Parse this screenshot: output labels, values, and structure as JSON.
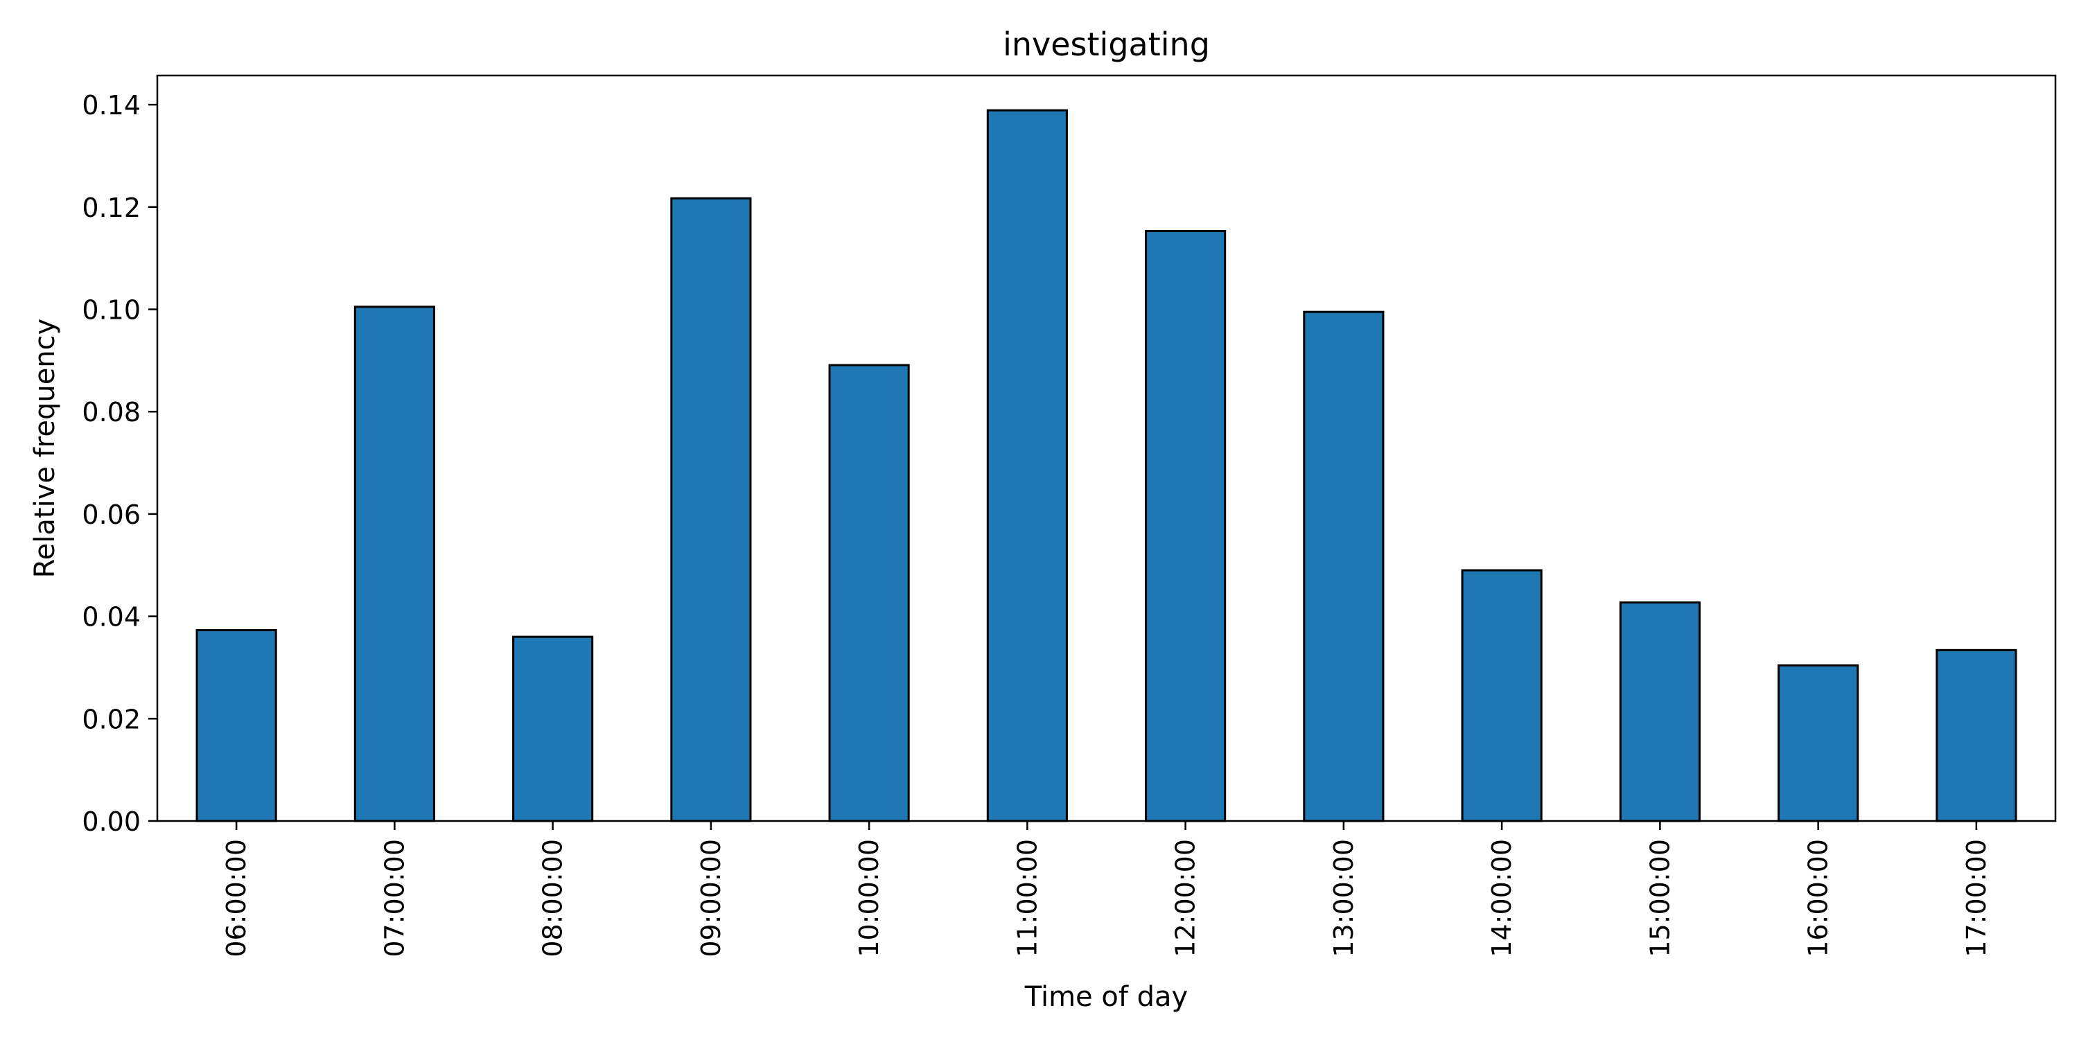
{
  "chart_data": {
    "type": "bar",
    "title": "investigating",
    "xlabel": "Time of day",
    "ylabel": "Relative frequency",
    "categories": [
      "06:00:00",
      "07:00:00",
      "08:00:00",
      "09:00:00",
      "10:00:00",
      "11:00:00",
      "12:00:00",
      "13:00:00",
      "14:00:00",
      "15:00:00",
      "16:00:00",
      "17:00:00"
    ],
    "values": [
      0.0373,
      0.1005,
      0.036,
      0.1217,
      0.0891,
      0.1389,
      0.1153,
      0.0995,
      0.049,
      0.0427,
      0.0304,
      0.0334
    ],
    "ylim": [
      0,
      0.1457
    ],
    "yticks": [
      0.0,
      0.02,
      0.04,
      0.06,
      0.08,
      0.1,
      0.12,
      0.14
    ],
    "ytick_labels": [
      "0.00",
      "0.02",
      "0.04",
      "0.06",
      "0.08",
      "0.10",
      "0.12",
      "0.14"
    ],
    "grid": false,
    "legend": "none",
    "bar_color": "#1f77b4",
    "edge_color": "#000000"
  }
}
